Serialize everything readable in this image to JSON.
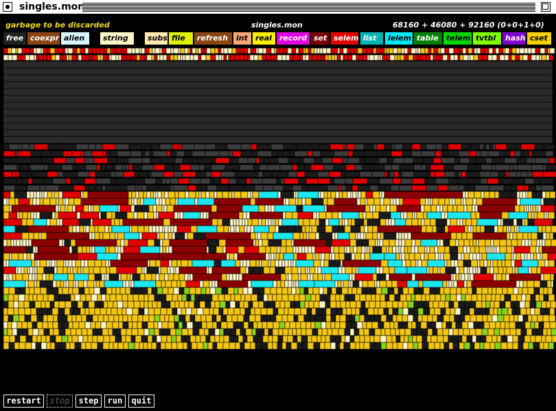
{
  "window": {
    "title": "singles.mon"
  },
  "header": {
    "garbage_label": "garbage to be discarded",
    "heap_name": "singles.mon",
    "size_summary": "68160 + 46080 + 92160  (0+0+1+0)"
  },
  "legend": [
    {
      "label": "free",
      "bg": "#222222",
      "fg": "#ffffff"
    },
    {
      "label": "coexpr",
      "bg": "#8b4513",
      "fg": "#ffffff"
    },
    {
      "label": "alien",
      "bg": "#d8f4ff",
      "fg": "#000000"
    },
    {
      "label": "string",
      "bg": "#fff6c8",
      "fg": "#000000"
    },
    {
      "label": "subs",
      "bg": "#ffe9b0",
      "fg": "#000000"
    },
    {
      "label": "file",
      "bg": "#ddf000",
      "fg": "#000000"
    },
    {
      "label": "refresh",
      "bg": "#8b4513",
      "fg": "#ffffff"
    },
    {
      "label": "int",
      "bg": "#f4a878",
      "fg": "#000000"
    },
    {
      "label": "real",
      "bg": "#f8f000",
      "fg": "#000000"
    },
    {
      "label": "record",
      "bg": "#e000e0",
      "fg": "#ffffff"
    },
    {
      "label": "set",
      "bg": "#7a0000",
      "fg": "#ffffff"
    },
    {
      "label": "selem",
      "bg": "#e00000",
      "fg": "#ffffff"
    },
    {
      "label": "list",
      "bg": "#00b4b4",
      "fg": "#ffffff"
    },
    {
      "label": "lelem",
      "bg": "#00e8f8",
      "fg": "#000000"
    },
    {
      "label": "table",
      "bg": "#008000",
      "fg": "#ffffff"
    },
    {
      "label": "telem",
      "bg": "#00d800",
      "fg": "#000000"
    },
    {
      "label": "tvtbl",
      "bg": "#80ff00",
      "fg": "#000000"
    },
    {
      "label": "hash",
      "bg": "#8000d0",
      "fg": "#ffffff"
    },
    {
      "label": "cset",
      "bg": "#f8d000",
      "fg": "#000000"
    }
  ],
  "memory_map": {
    "colors": {
      "free": "#2a2a2a",
      "string": "#fff6c8",
      "real": "#f3c614",
      "selem": "#e00000",
      "set": "#8a0000",
      "lelem": "#1ee6ee",
      "telem": "#86d21e",
      "tvtbl": "#9fe35a",
      "dark": "#1a1a1a",
      "gray": "#3c3c3c"
    }
  },
  "controls": {
    "restart": "restart",
    "stop": "stop",
    "step": "step",
    "run": "run",
    "quit": "quit"
  }
}
